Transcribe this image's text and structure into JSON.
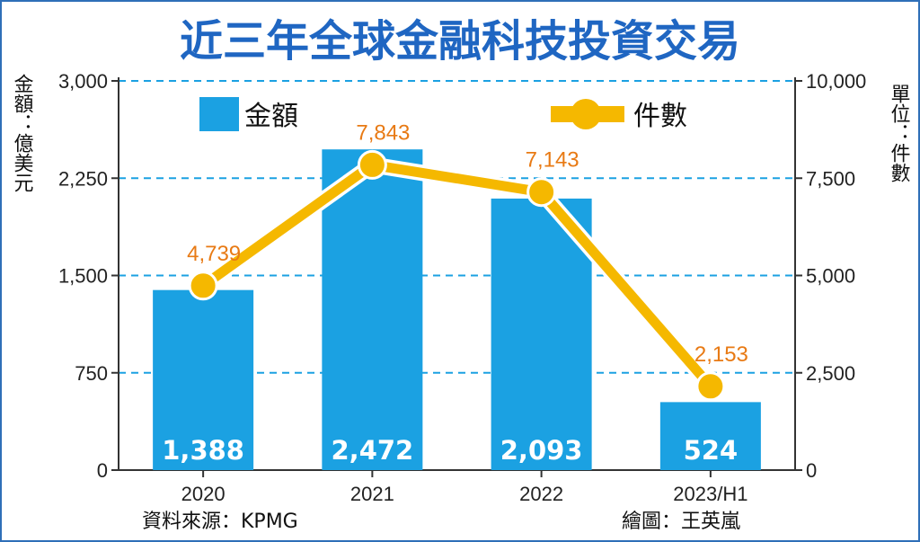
{
  "chart_data": {
    "type": "bar+line",
    "title": "近三年全球金融科技投資交易",
    "categories": [
      "2020",
      "2021",
      "2022",
      "2023/H1"
    ],
    "series": [
      {
        "name": "金額",
        "type": "bar",
        "axis": "left",
        "values": [
          1388,
          2472,
          2093,
          524
        ],
        "color": "#1ba1e2"
      },
      {
        "name": "件數",
        "type": "line",
        "axis": "right",
        "values": [
          4739,
          7843,
          7143,
          2153
        ],
        "color": "#f5b800"
      }
    ],
    "left_axis": {
      "label": "金額：億美元",
      "ylim": [
        0,
        3000
      ],
      "ticks": [
        0,
        750,
        1500,
        2250,
        3000
      ]
    },
    "right_axis": {
      "label": "單位：件數",
      "ylim": [
        0,
        10000
      ],
      "ticks": [
        0,
        2500,
        5000,
        7500,
        10000
      ]
    },
    "bar_labels": [
      "1,388",
      "2,472",
      "2,093",
      "524"
    ],
    "point_labels": [
      "4,739",
      "7,843",
      "7,143",
      "2,153"
    ],
    "left_tick_labels": [
      "0",
      "750",
      "1,500",
      "2,250",
      "3,000"
    ],
    "right_tick_labels": [
      "0",
      "2,500",
      "5,000",
      "7,500",
      "10,000"
    ],
    "grid": true,
    "legend": {
      "placement": "top",
      "bar_label": "金額",
      "line_label": "件數"
    },
    "source": "資料來源：KPMG",
    "credit": "繪圖：王英嵐",
    "label_color": "#e87a14",
    "grid_color": "#1ba1e2"
  }
}
